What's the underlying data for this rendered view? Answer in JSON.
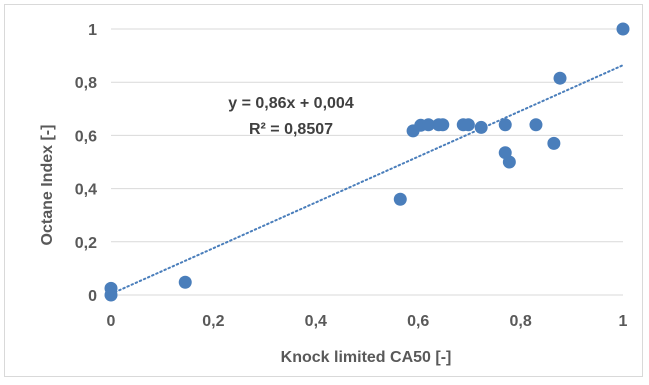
{
  "chart_data": {
    "type": "scatter",
    "xlabel": "Knock limited CA50 [-]",
    "ylabel": "Octane Index [-]",
    "xlim": [
      0,
      1
    ],
    "ylim": [
      0,
      1
    ],
    "x_ticks": [
      "0",
      "0,2",
      "0,4",
      "0,6",
      "0,8",
      "1"
    ],
    "y_ticks": [
      "0",
      "0,2",
      "0,4",
      "0,6",
      "0,8",
      "1"
    ],
    "grid": "horizontal",
    "series": [
      {
        "color": "#4a7ebb",
        "points": [
          [
            0.0,
            0.0
          ],
          [
            0.0,
            0.025
          ],
          [
            0.145,
            0.048
          ],
          [
            0.565,
            0.36
          ],
          [
            0.59,
            0.617
          ],
          [
            0.605,
            0.638
          ],
          [
            0.62,
            0.64
          ],
          [
            0.64,
            0.64
          ],
          [
            0.648,
            0.64
          ],
          [
            0.688,
            0.64
          ],
          [
            0.698,
            0.64
          ],
          [
            0.723,
            0.63
          ],
          [
            0.77,
            0.64
          ],
          [
            0.77,
            0.535
          ],
          [
            0.778,
            0.5
          ],
          [
            0.83,
            0.64
          ],
          [
            0.865,
            0.57
          ],
          [
            0.877,
            0.815
          ],
          [
            1.0,
            1.0
          ]
        ]
      }
    ],
    "trendline": {
      "style": "dotted",
      "color": "#4a7ebb",
      "slope": 0.86,
      "intercept": 0.004
    },
    "annotations": [
      "y = 0,86x + 0,004",
      "R² = 0,8507"
    ]
  }
}
